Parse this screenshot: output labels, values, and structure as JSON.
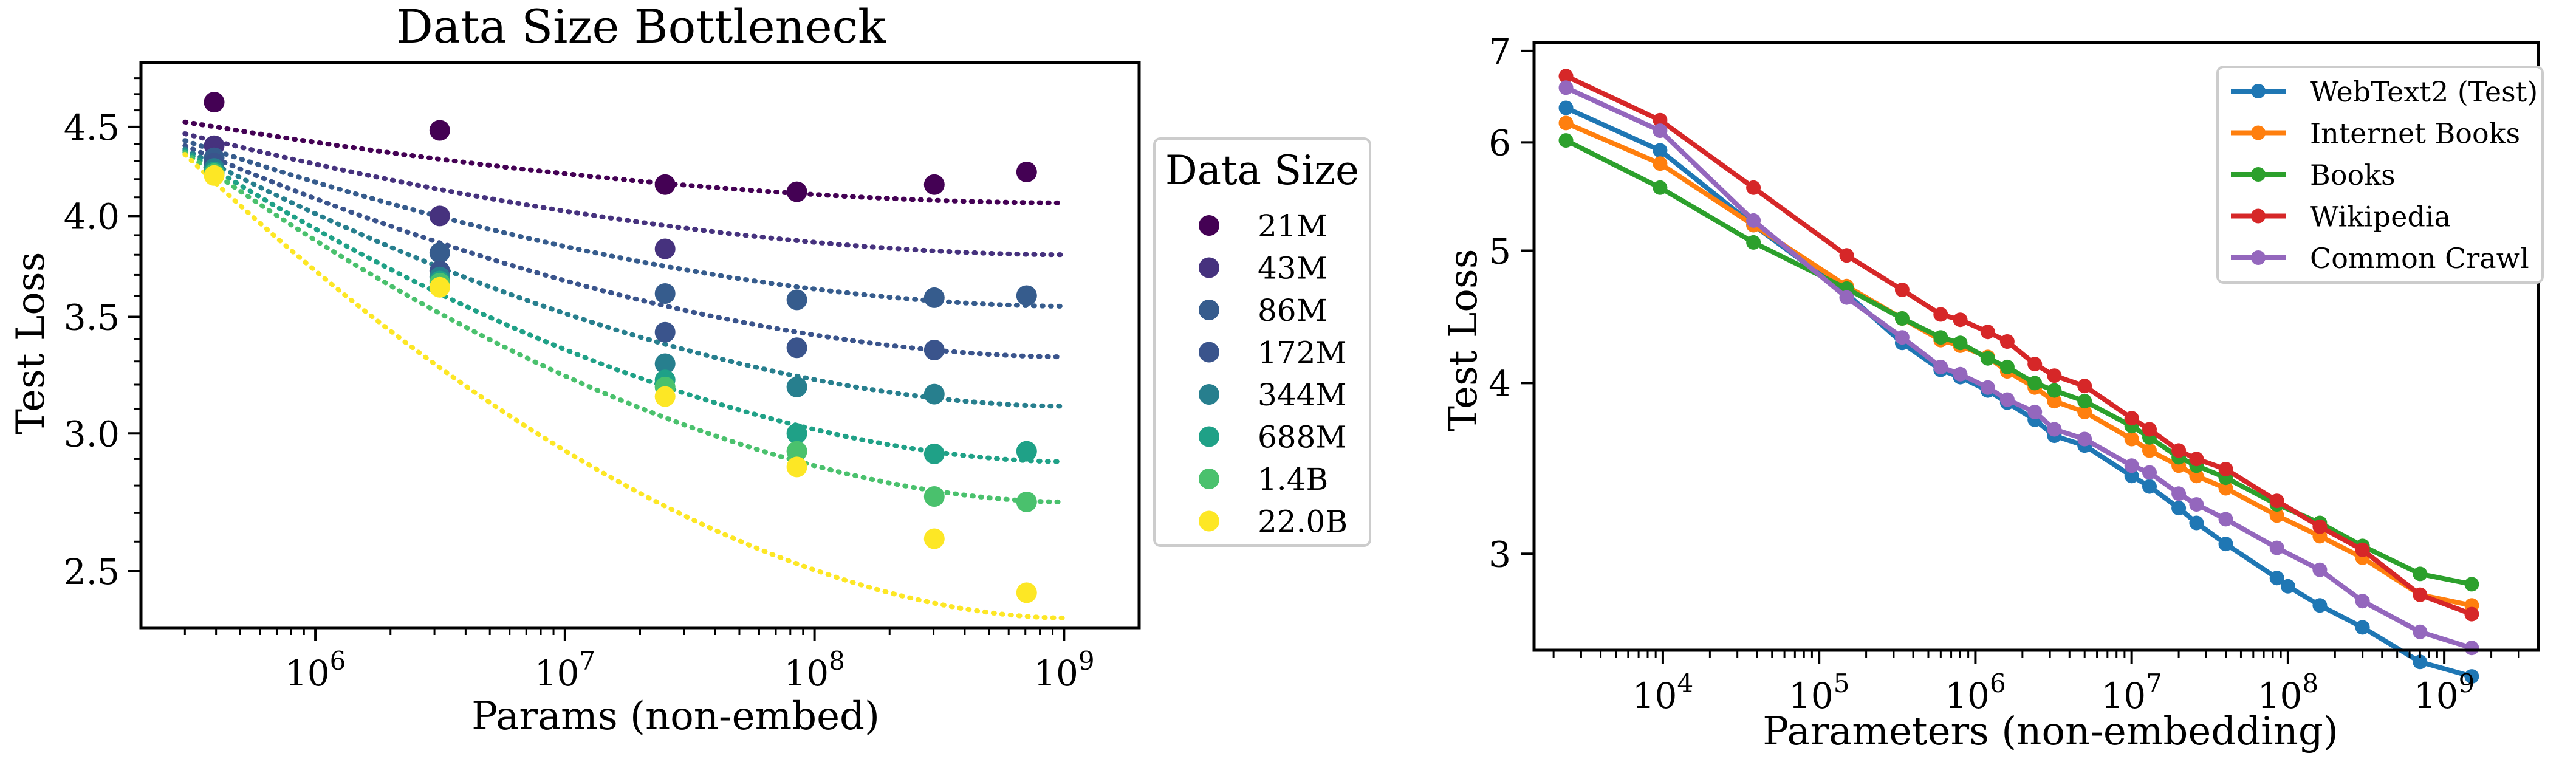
{
  "chart_data": [
    {
      "type": "scatter",
      "title": "Data Size Bottleneck",
      "xlabel": "Params (non-embed)",
      "ylabel": "Test Loss",
      "xscale": "log",
      "yscale": "log",
      "xlim": [
        200000,
        2000000000
      ],
      "ylim": [
        2.32,
        4.9
      ],
      "xticks": [
        {
          "value": 1000000,
          "base": "10",
          "exp": "6"
        },
        {
          "value": 10000000,
          "base": "10",
          "exp": "7"
        },
        {
          "value": 100000000,
          "base": "10",
          "exp": "8"
        },
        {
          "value": 1000000000,
          "base": "10",
          "exp": "9"
        }
      ],
      "yticks": [
        {
          "value": 2.5,
          "label": "2.5"
        },
        {
          "value": 3.0,
          "label": "3.0"
        },
        {
          "value": 3.5,
          "label": "3.5"
        },
        {
          "value": 4.0,
          "label": "4.0"
        },
        {
          "value": 4.5,
          "label": "4.5"
        }
      ],
      "legend": {
        "title": "Data Size",
        "placement": "outside-right"
      },
      "fit_lines": "dotted",
      "x": [
        393000,
        3150000,
        25200000,
        85000000,
        302000000,
        708000000
      ],
      "series": [
        {
          "name": "21M",
          "color": "#440154",
          "values": [
            4.65,
            4.48,
            4.17,
            4.13,
            4.17,
            4.24
          ]
        },
        {
          "name": "43M",
          "color": "#46327e",
          "values": [
            4.39,
            4.0,
            3.83,
            null,
            null,
            null
          ]
        },
        {
          "name": "86M",
          "color": "#365c8d",
          "values": [
            4.32,
            3.81,
            3.61,
            3.58,
            3.59,
            3.6
          ]
        },
        {
          "name": "172M",
          "color": "#3a548c",
          "values": [
            4.29,
            3.72,
            3.43,
            3.36,
            3.35,
            null
          ]
        },
        {
          "name": "344M",
          "color": "#277f8e",
          "values": [
            4.26,
            3.69,
            3.29,
            3.19,
            3.16,
            null
          ]
        },
        {
          "name": "688M",
          "color": "#1fa187",
          "values": [
            4.24,
            3.67,
            3.22,
            3.0,
            2.92,
            2.93
          ]
        },
        {
          "name": "1.4B",
          "color": "#4ac16d",
          "values": [
            4.23,
            3.66,
            3.19,
            2.93,
            2.76,
            2.74
          ]
        },
        {
          "name": "22.0B",
          "color": "#fde725",
          "values": [
            4.22,
            3.64,
            3.15,
            2.87,
            2.61,
            2.43
          ]
        }
      ],
      "fits": [
        {
          "series": "21M",
          "y_at_xlim": [
            4.53,
            4.07
          ]
        },
        {
          "series": "43M",
          "y_at_xlim": [
            4.46,
            3.8
          ]
        },
        {
          "series": "86M",
          "y_at_xlim": [
            4.42,
            3.55
          ]
        },
        {
          "series": "172M",
          "y_at_xlim": [
            4.39,
            3.32
          ]
        },
        {
          "series": "344M",
          "y_at_xlim": [
            4.37,
            3.11
          ]
        },
        {
          "series": "688M",
          "y_at_xlim": [
            4.36,
            2.89
          ]
        },
        {
          "series": "1.4B",
          "y_at_xlim": [
            4.35,
            2.74
          ]
        },
        {
          "series": "22.0B",
          "y_at_xlim": [
            4.34,
            2.35
          ]
        }
      ]
    },
    {
      "type": "line",
      "title": "",
      "xlabel": "Parameters (non-embedding)",
      "ylabel": "Test Loss",
      "xscale": "log",
      "yscale": "log",
      "xlim": [
        1500,
        4000000000
      ],
      "ylim": [
        2.55,
        7.1
      ],
      "xticks": [
        {
          "value": 10000,
          "base": "10",
          "exp": "4"
        },
        {
          "value": 100000,
          "base": "10",
          "exp": "5"
        },
        {
          "value": 1000000,
          "base": "10",
          "exp": "6"
        },
        {
          "value": 10000000,
          "base": "10",
          "exp": "7"
        },
        {
          "value": 100000000,
          "base": "10",
          "exp": "8"
        },
        {
          "value": 1000000000,
          "base": "10",
          "exp": "9"
        }
      ],
      "yticks": [
        {
          "value": 3,
          "label": "3"
        },
        {
          "value": 4,
          "label": "4"
        },
        {
          "value": 5,
          "label": "5"
        },
        {
          "value": 6,
          "label": "6"
        },
        {
          "value": 7,
          "label": "7"
        }
      ],
      "legend": {
        "placement": "top-right"
      },
      "series": [
        {
          "name": "WebText2 (Test)",
          "color": "#1f77b4",
          "x": [
            2400,
            9600,
            38000,
            150000,
            340000,
            600000,
            800000,
            1200000,
            1600000,
            2400000,
            3200000,
            5000000,
            10000000,
            13000000,
            20000000,
            26000000,
            40000000,
            85000000,
            100000000,
            160000000,
            300000000,
            700000000,
            1500000000
          ],
          "values": [
            6.36,
            5.92,
            5.22,
            4.65,
            4.28,
            4.09,
            4.04,
            3.95,
            3.87,
            3.76,
            3.66,
            3.6,
            3.42,
            3.36,
            3.24,
            3.16,
            3.05,
            2.88,
            2.84,
            2.75,
            2.65,
            2.5,
            2.44
          ]
        },
        {
          "name": "Internet Books",
          "color": "#ff7f0e",
          "x": [
            2400,
            9600,
            38000,
            150000,
            340000,
            600000,
            800000,
            1200000,
            1600000,
            2400000,
            3200000,
            5000000,
            10000000,
            13000000,
            20000000,
            26000000,
            40000000,
            85000000,
            160000000,
            300000000,
            700000000,
            1500000000
          ],
          "values": [
            6.2,
            5.79,
            5.22,
            4.71,
            4.46,
            4.3,
            4.26,
            4.18,
            4.08,
            3.97,
            3.88,
            3.81,
            3.64,
            3.57,
            3.48,
            3.42,
            3.35,
            3.2,
            3.09,
            2.98,
            2.8,
            2.75
          ]
        },
        {
          "name": "Books",
          "color": "#2ca02c",
          "x": [
            2400,
            9600,
            38000,
            150000,
            340000,
            600000,
            800000,
            1200000,
            1600000,
            2400000,
            3200000,
            5000000,
            10000000,
            13000000,
            20000000,
            26000000,
            40000000,
            85000000,
            160000000,
            300000000,
            700000000,
            1500000000
          ],
          "values": [
            6.02,
            5.56,
            5.07,
            4.69,
            4.46,
            4.32,
            4.28,
            4.17,
            4.11,
            4.0,
            3.95,
            3.88,
            3.72,
            3.65,
            3.53,
            3.48,
            3.41,
            3.26,
            3.16,
            3.04,
            2.9,
            2.85
          ]
        },
        {
          "name": "Wikipedia",
          "color": "#d62728",
          "x": [
            2400,
            9600,
            38000,
            150000,
            340000,
            600000,
            800000,
            1200000,
            1600000,
            2400000,
            3200000,
            5000000,
            10000000,
            13000000,
            20000000,
            26000000,
            40000000,
            85000000,
            160000000,
            300000000,
            700000000,
            1500000000
          ],
          "values": [
            6.71,
            6.23,
            5.56,
            4.96,
            4.68,
            4.49,
            4.45,
            4.36,
            4.29,
            4.13,
            4.05,
            3.98,
            3.77,
            3.7,
            3.57,
            3.52,
            3.46,
            3.28,
            3.14,
            3.02,
            2.8,
            2.71
          ]
        },
        {
          "name": "Common Crawl",
          "color": "#9467bd",
          "x": [
            2400,
            9600,
            38000,
            150000,
            340000,
            600000,
            800000,
            1200000,
            1600000,
            2400000,
            3200000,
            5000000,
            10000000,
            13000000,
            20000000,
            26000000,
            40000000,
            85000000,
            160000000,
            300000000,
            700000000,
            1500000000
          ],
          "values": [
            6.58,
            6.12,
            5.26,
            4.62,
            4.32,
            4.11,
            4.06,
            3.97,
            3.89,
            3.81,
            3.7,
            3.64,
            3.48,
            3.44,
            3.32,
            3.26,
            3.18,
            3.03,
            2.92,
            2.77,
            2.63,
            2.56
          ]
        }
      ]
    }
  ]
}
